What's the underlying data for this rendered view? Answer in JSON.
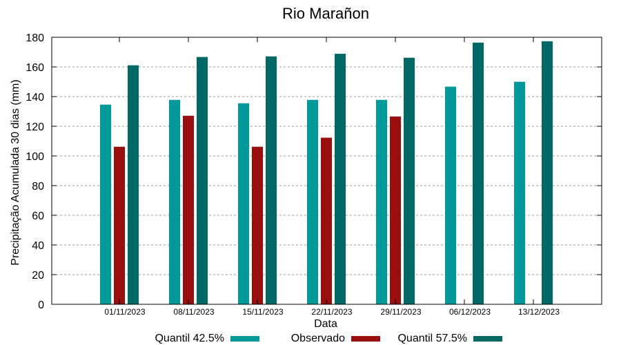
{
  "chart_data": {
    "type": "bar",
    "title": "Rio Marañon",
    "xlabel": "Data",
    "ylabel": "Precipitação Acumulada 30 dias (mm)",
    "ylim": [
      0,
      180
    ],
    "yticks": [
      0,
      20,
      40,
      60,
      80,
      100,
      120,
      140,
      160,
      180
    ],
    "grid": true,
    "legend": "bottom",
    "categories": [
      "01/11/2023",
      "08/11/2023",
      "15/11/2023",
      "22/11/2023",
      "29/11/2023",
      "06/12/2023",
      "13/12/2023"
    ],
    "series": [
      {
        "name": "Quantil 42.5%",
        "color": "#009999",
        "values": [
          134.6,
          137.8,
          135.5,
          137.8,
          137.8,
          146.7,
          150.0
        ]
      },
      {
        "name": "Observado",
        "color": "#990e0e",
        "values": [
          106.2,
          127.1,
          106.2,
          112.3,
          126.6,
          null,
          null
        ]
      },
      {
        "name": "Quantil 57.5%",
        "color": "#006966",
        "values": [
          161.1,
          166.7,
          167.1,
          168.9,
          166.2,
          176.4,
          177.3
        ]
      }
    ]
  }
}
